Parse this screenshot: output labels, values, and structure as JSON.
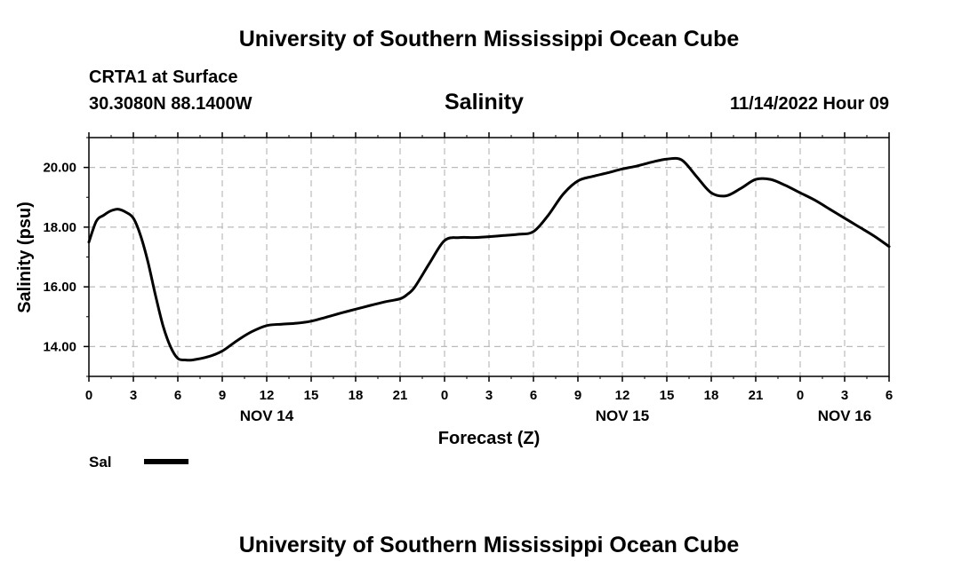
{
  "header": {
    "title_top": "University of Southern Mississippi Ocean Cube",
    "title_bottom": "University of Southern Mississippi Ocean Cube",
    "station": "CRTA1 at Surface",
    "coords": "30.3080N  88.1400W",
    "run_time": "11/14/2022 Hour 09"
  },
  "chart_data": {
    "type": "line",
    "title": "Salinity",
    "xlabel": "Forecast (Z)",
    "ylabel": "Salinity (psu)",
    "ylim": [
      13.0,
      21.0
    ],
    "xlim": [
      0,
      54
    ],
    "yticks": [
      14.0,
      16.0,
      18.0,
      20.0
    ],
    "ytick_labels": [
      "14.00",
      "16.00",
      "18.00",
      "20.00"
    ],
    "xticks": [
      0,
      3,
      6,
      9,
      12,
      15,
      18,
      21,
      24,
      27,
      30,
      33,
      36,
      39,
      42,
      45,
      48,
      51,
      54
    ],
    "xtick_labels": [
      "0",
      "3",
      "6",
      "9",
      "12",
      "15",
      "18",
      "21",
      "0",
      "3",
      "6",
      "9",
      "12",
      "15",
      "18",
      "21",
      "0",
      "3",
      "6"
    ],
    "day_labels": [
      {
        "x": 12,
        "label": "NOV 14"
      },
      {
        "x": 36,
        "label": "NOV 15"
      },
      {
        "x": 51,
        "label": "NOV 16"
      }
    ],
    "grid": true,
    "legend": {
      "position": "bottom-left",
      "label": "Sal"
    },
    "series": [
      {
        "name": "Sal",
        "x": [
          0,
          0.5,
          1,
          1.5,
          2,
          2.5,
          3,
          3.5,
          4,
          4.5,
          5,
          5.5,
          6,
          6.5,
          7,
          8,
          9,
          10,
          11,
          12,
          13,
          14,
          15,
          16,
          17,
          18,
          19,
          20,
          21,
          21.5,
          22,
          23,
          24,
          25,
          26,
          27,
          28,
          29,
          30,
          31,
          32,
          33,
          34,
          35,
          36,
          37,
          38,
          39,
          40,
          41,
          42,
          43,
          44,
          45,
          46,
          47,
          48,
          49,
          50,
          51,
          52,
          53,
          54
        ],
        "values": [
          17.5,
          18.2,
          18.4,
          18.55,
          18.6,
          18.5,
          18.3,
          17.7,
          16.8,
          15.7,
          14.7,
          14.0,
          13.6,
          13.55,
          13.55,
          13.65,
          13.85,
          14.2,
          14.5,
          14.7,
          14.75,
          14.78,
          14.85,
          14.98,
          15.12,
          15.25,
          15.38,
          15.5,
          15.6,
          15.75,
          16.0,
          16.8,
          17.55,
          17.65,
          17.65,
          17.68,
          17.72,
          17.76,
          17.85,
          18.4,
          19.1,
          19.55,
          19.7,
          19.82,
          19.95,
          20.05,
          20.18,
          20.28,
          20.25,
          19.7,
          19.15,
          19.05,
          19.3,
          19.6,
          19.6,
          19.4,
          19.15,
          18.9,
          18.6,
          18.3,
          18.0,
          17.7,
          17.35
        ]
      }
    ]
  }
}
